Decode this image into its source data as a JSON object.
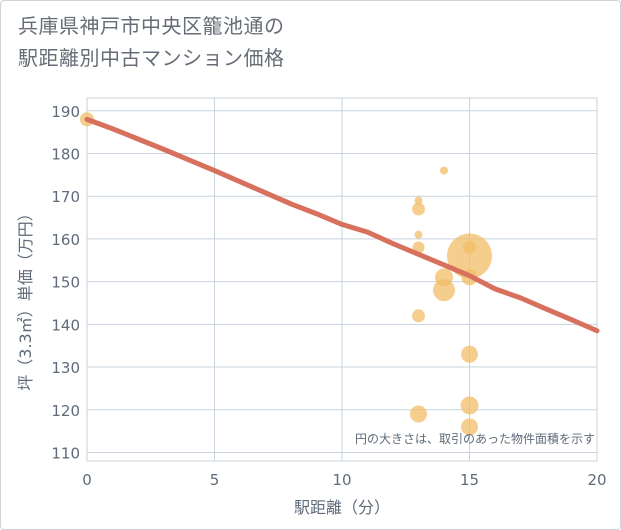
{
  "title_line1": "兵庫県神戸市中央区籠池通の",
  "title_line2": "駅距離別中古マンション価格",
  "chart_data": {
    "type": "scatter",
    "title": "兵庫県神戸市中央区籠池通の駅距離別中古マンション価格",
    "xlabel": "駅距離（分）",
    "ylabel": "坪（3.3㎡）単価（万円）",
    "xlim": [
      0,
      20
    ],
    "ylim": [
      108,
      193
    ],
    "xticks": [
      "0",
      "5",
      "10",
      "15",
      "20"
    ],
    "yticks": [
      "110",
      "120",
      "130",
      "140",
      "150",
      "160",
      "170",
      "180",
      "190"
    ],
    "grid": true,
    "note": "円の大きさは、取引のあった物件面積を示す",
    "points": [
      {
        "x": 0,
        "y": 188,
        "size": 14
      },
      {
        "x": 13,
        "y": 169,
        "size": 8
      },
      {
        "x": 13,
        "y": 167,
        "size": 13
      },
      {
        "x": 13,
        "y": 161,
        "size": 8
      },
      {
        "x": 13,
        "y": 158,
        "size": 12
      },
      {
        "x": 13,
        "y": 142,
        "size": 13
      },
      {
        "x": 13,
        "y": 119,
        "size": 17
      },
      {
        "x": 14,
        "y": 176,
        "size": 8
      },
      {
        "x": 14,
        "y": 151,
        "size": 18
      },
      {
        "x": 14,
        "y": 148,
        "size": 22
      },
      {
        "x": 15,
        "y": 156,
        "size": 45
      },
      {
        "x": 15,
        "y": 158,
        "size": 13
      },
      {
        "x": 15,
        "y": 151,
        "size": 16
      },
      {
        "x": 15,
        "y": 133,
        "size": 17
      },
      {
        "x": 15,
        "y": 121,
        "size": 18
      },
      {
        "x": 15,
        "y": 116,
        "size": 17
      }
    ],
    "trend": {
      "x": [
        0,
        1,
        2,
        3,
        4,
        5,
        6,
        7,
        8,
        9,
        10,
        11,
        12,
        13,
        14,
        15,
        16,
        17,
        18,
        19,
        20
      ],
      "y": [
        188,
        185.8,
        183.4,
        181,
        178.5,
        176,
        173.4,
        170.8,
        168.2,
        165.9,
        163.4,
        161.6,
        158.9,
        156.4,
        153.9,
        151.4,
        148.3,
        146.2,
        143.6,
        141.1,
        138.5
      ]
    },
    "colors": {
      "bubble": "#f1be67",
      "trend": "#d7705d",
      "grid": "#c8d3de"
    }
  }
}
